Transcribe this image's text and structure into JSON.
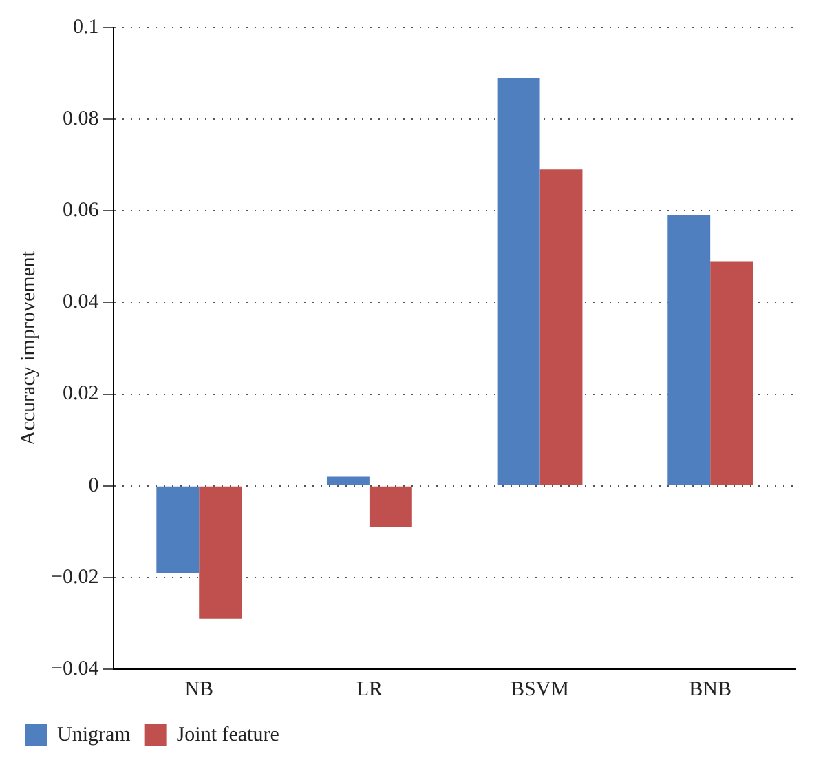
{
  "chart_data": {
    "type": "bar",
    "ylabel": "Accuracy improvement",
    "categories": [
      "NB",
      "LR",
      "BSVM",
      "BNB"
    ],
    "series": [
      {
        "name": "Unigram",
        "color": "#4f7fbf",
        "values": [
          -0.019,
          0.002,
          0.089,
          0.059
        ]
      },
      {
        "name": "Joint feature",
        "color": "#c0504d",
        "values": [
          -0.029,
          -0.009,
          0.069,
          0.049
        ]
      }
    ],
    "ylim": [
      -0.04,
      0.1
    ],
    "yticks": [
      {
        "value": -0.04,
        "label": "−0.04"
      },
      {
        "value": -0.02,
        "label": "−0.02"
      },
      0,
      0.02,
      0.04,
      0.06,
      0.08,
      0.1
    ],
    "grid": "y",
    "legend": "bottom left"
  }
}
